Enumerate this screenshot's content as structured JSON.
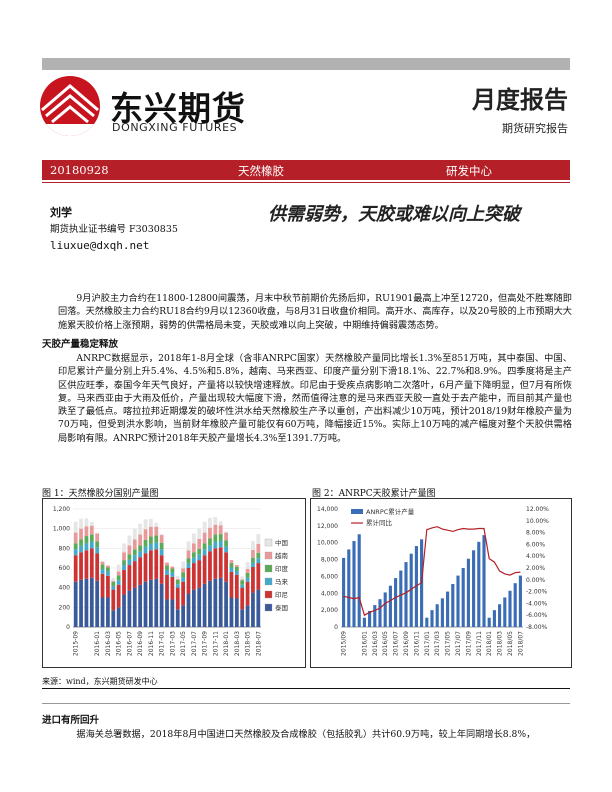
{
  "header": {
    "company_cn": "东兴期货",
    "company_en": "DONGXING FUTURES",
    "report_type": "月度报告",
    "report_subtype": "期货研究报告"
  },
  "banner": {
    "date": "20180928",
    "product": "天然橡胶",
    "dept": "研发中心"
  },
  "author": {
    "name": "刘学",
    "license": "期货执业证书编号 F3030835",
    "email": "liuxue@dxqh.net"
  },
  "headline": "供需弱势，天胶或难以向上突破",
  "body": {
    "intro": "9月沪胶主力合约在11800-12800间震荡，月末中秋节前期价先扬后抑，RU1901最高上冲至12720，但高处不胜寒随即回落。天然橡胶主力合约RU18合约9月以12360收盘，与8月31日收盘价相同。高开水、高库存，以及20号胶的上市预期大大施累天胶价格上涨预期，弱势的供需格局未变，天胶或难以向上突破，中期维持偏弱震荡态势。",
    "section1_title": "天胶产量稳定释放",
    "section1_text": "ANRPC数据显示，2018年1-8月全球（含非ANRPC国家）天然橡胶产量同比增长1.3%至851万吨，其中泰国、中国、印尼累计产量分别上升5.4%、4.5%和5.8%，越南、马来西亚、印度产量分别下滑18.1%、22.7%和8.9%。四季度将是主产区供应旺季，泰国今年天气良好，产量将以较快增速释放。印尼由于受疾点病影响二次落叶，6月产量下降明显，但7月有所恢复。马来西亚由于大雨及低价，产量出现较大幅度下滑，然而值得注意的是马来西亚天胶一直处于去产能中，而目前其产量也跌至了最低点。喀拉拉邦近期爆发的破坏性洪水给天然橡胶生产予以重创，产出料减少10万吨，预计2018/19财年橡胶产量为70万吨，但受到洪水影响，当前财年橡胶产量可能仅有60万吨，降幅接近15%。实际上10万吨的减产幅度对整个天胶供需格局影响有限。ANRPC预计2018年天胶产量增长4.3%至1391.7万吨。",
    "section2_title": "进口有所回升",
    "section2_text": "据海关总署数据，2018年8月中国进口天然橡胶及合成橡胶（包括胶乳）共计60.9万吨，较上年同期增长8.8%，"
  },
  "figures": {
    "fig1_title": "图 1：天然橡胶分国别产量图",
    "fig2_title": "图 2：ANRPC天胶累计产量图",
    "source": "来源：wind，东兴期货研发中心"
  },
  "chart_data": [
    {
      "type": "bar",
      "stacked": true,
      "ylim": [
        0,
        1200
      ],
      "yticks": [
        "0",
        "200",
        "400",
        "600",
        "800",
        "1,000",
        "1,200"
      ],
      "xticks": [
        "2015-09",
        "2016-01",
        "2016-03",
        "2016-05",
        "2016-07",
        "2016-09",
        "2016-11",
        "2017-01",
        "2017-03",
        "2017-05",
        "2017-07",
        "2017-09",
        "2017-11",
        "2018-01",
        "2018-03",
        "2018-05",
        "2018-07"
      ],
      "legend": [
        "中国",
        "越南",
        "印度",
        "马来",
        "印尼",
        "泰国"
      ],
      "legend_position": "right",
      "colors": {
        "中国": "#e6e6e6",
        "越南": "#e89a9a",
        "印度": "#5aaa5a",
        "马来": "#44aacc",
        "印尼": "#cc3333",
        "泰国": "#3a5a9a"
      },
      "months": [
        "2015-09",
        "2015-10",
        "2015-11",
        "2015-12",
        "2016-01",
        "2016-02",
        "2016-03",
        "2016-04",
        "2016-05",
        "2016-06",
        "2016-07",
        "2016-08",
        "2016-09",
        "2016-10",
        "2016-11",
        "2016-12",
        "2017-01",
        "2017-02",
        "2017-03",
        "2017-04",
        "2017-05",
        "2017-06",
        "2017-07",
        "2017-08",
        "2017-09",
        "2017-10",
        "2017-11",
        "2017-12",
        "2018-01",
        "2018-02",
        "2018-03",
        "2018-04",
        "2018-05",
        "2018-06",
        "2018-07"
      ],
      "series": [
        {
          "name": "泰国",
          "values": [
            460,
            480,
            490,
            500,
            470,
            300,
            300,
            170,
            200,
            330,
            370,
            400,
            430,
            460,
            480,
            490,
            440,
            280,
            280,
            180,
            220,
            340,
            380,
            400,
            440,
            470,
            490,
            500,
            460,
            300,
            290,
            180,
            220,
            350,
            380
          ]
        },
        {
          "name": "印尼",
          "values": [
            270,
            280,
            290,
            300,
            280,
            240,
            220,
            210,
            230,
            250,
            260,
            270,
            280,
            290,
            300,
            300,
            290,
            250,
            230,
            220,
            240,
            260,
            270,
            280,
            290,
            300,
            310,
            310,
            300,
            260,
            240,
            220,
            240,
            260,
            270
          ]
        },
        {
          "name": "马来",
          "values": [
            60,
            65,
            70,
            70,
            60,
            50,
            45,
            35,
            45,
            50,
            55,
            60,
            60,
            65,
            65,
            70,
            60,
            50,
            45,
            35,
            45,
            50,
            55,
            55,
            60,
            60,
            65,
            65,
            55,
            45,
            40,
            30,
            40,
            45,
            50
          ]
        },
        {
          "name": "印度",
          "values": [
            60,
            65,
            75,
            70,
            60,
            45,
            40,
            45,
            50,
            50,
            55,
            60,
            60,
            70,
            75,
            70,
            65,
            45,
            40,
            45,
            50,
            50,
            55,
            60,
            60,
            70,
            75,
            70,
            65,
            45,
            40,
            45,
            50,
            50,
            55
          ]
        },
        {
          "name": "越南",
          "values": [
            110,
            110,
            100,
            90,
            80,
            30,
            20,
            10,
            40,
            80,
            90,
            100,
            110,
            110,
            100,
            90,
            80,
            30,
            20,
            10,
            40,
            80,
            90,
            100,
            110,
            110,
            100,
            90,
            80,
            30,
            20,
            10,
            40,
            80,
            90
          ]
        },
        {
          "name": "中国",
          "values": [
            110,
            100,
            80,
            40,
            10,
            0,
            0,
            30,
            70,
            90,
            100,
            110,
            110,
            100,
            80,
            40,
            10,
            0,
            0,
            30,
            70,
            90,
            100,
            110,
            110,
            100,
            80,
            40,
            10,
            0,
            0,
            30,
            70,
            90,
            100
          ]
        }
      ]
    },
    {
      "type": "bar+line",
      "y_left_lim": [
        0,
        14000
      ],
      "y_left_ticks": [
        "0",
        "2,000",
        "4,000",
        "6,000",
        "8,000",
        "10,000",
        "12,000",
        "14,000"
      ],
      "y_right_lim": [
        -8,
        12
      ],
      "y_right_ticks": [
        "-8.00%",
        "-6.00%",
        "-4.00%",
        "-2.00%",
        "0.00%",
        "2.00%",
        "4.00%",
        "6.00%",
        "8.00%",
        "10.00%",
        "12.00%"
      ],
      "xticks": [
        "2015/09",
        "2016/01",
        "2016/03",
        "2016/05",
        "2016/07",
        "2016/09",
        "2016/11",
        "2017/01",
        "2017/03",
        "2017/05",
        "2017/07",
        "2017/09",
        "2017/11",
        "2018/01",
        "2018/03",
        "2018/05",
        "2018/07"
      ],
      "legend": [
        "ANRPC累计产量",
        "累计同比"
      ],
      "legend_position": "top-left",
      "bar_color": "#3a6db5",
      "line_color": "#b52028",
      "months": [
        "2015-09",
        "2015-10",
        "2015-11",
        "2015-12",
        "2016-01",
        "2016-02",
        "2016-03",
        "2016-04",
        "2016-05",
        "2016-06",
        "2016-07",
        "2016-08",
        "2016-09",
        "2016-10",
        "2016-11",
        "2016-12",
        "2017-01",
        "2017-02",
        "2017-03",
        "2017-04",
        "2017-05",
        "2017-06",
        "2017-07",
        "2017-08",
        "2017-09",
        "2017-10",
        "2017-11",
        "2017-12",
        "2018-01",
        "2018-02",
        "2018-03",
        "2018-04",
        "2018-05",
        "2018-06",
        "2018-07"
      ],
      "bars": [
        8200,
        9200,
        10200,
        11000,
        1100,
        1900,
        2600,
        3300,
        4100,
        4900,
        5800,
        6700,
        7700,
        8700,
        9600,
        10400,
        1100,
        2000,
        2700,
        3400,
        4200,
        5100,
        6100,
        7000,
        8100,
        9100,
        10100,
        10900,
        1100,
        2000,
        2700,
        3500,
        4300,
        5200,
        6100
      ],
      "growth": [
        -2.8,
        -3.0,
        -3.2,
        -3.0,
        -6.0,
        -5.5,
        -5.2,
        -4.8,
        -4.0,
        -3.5,
        -3.0,
        -2.6,
        -2.2,
        -1.6,
        -1.0,
        -0.5,
        8.5,
        8.8,
        9.0,
        8.6,
        8.4,
        8.2,
        8.5,
        8.7,
        8.6,
        8.6,
        8.7,
        8.7,
        3.6,
        3.0,
        1.5,
        1.0,
        0.8,
        1.2,
        1.3
      ]
    }
  ]
}
